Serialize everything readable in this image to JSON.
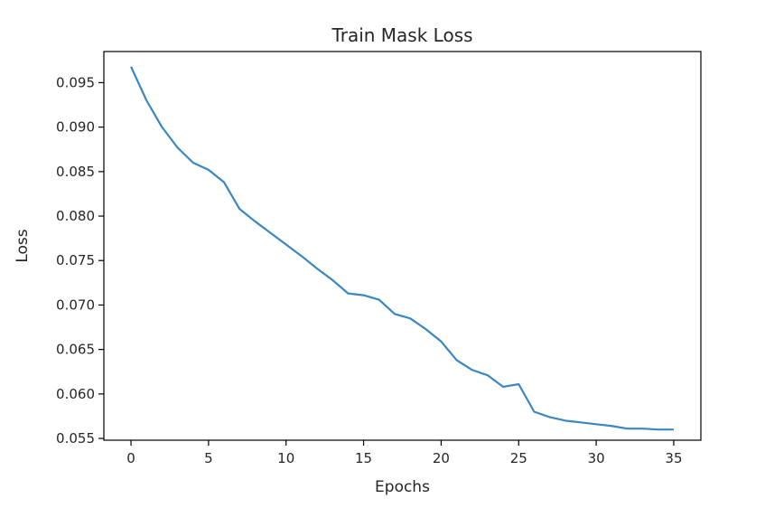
{
  "chart_data": {
    "type": "line",
    "title": "Train Mask Loss",
    "xlabel": "Epochs",
    "ylabel": "Loss",
    "xlim": [
      -1.75,
      36.75
    ],
    "ylim": [
      0.0548,
      0.0985
    ],
    "xticks": [
      0,
      5,
      10,
      15,
      20,
      25,
      30,
      35
    ],
    "xtick_labels": [
      "0",
      "5",
      "10",
      "15",
      "20",
      "25",
      "30",
      "35"
    ],
    "yticks": [
      0.055,
      0.06,
      0.065,
      0.07,
      0.075,
      0.08,
      0.085,
      0.09,
      0.095
    ],
    "ytick_labels": [
      "0.055",
      "0.060",
      "0.065",
      "0.070",
      "0.075",
      "0.080",
      "0.085",
      "0.090",
      "0.095"
    ],
    "grid": false,
    "series": [
      {
        "color": "#3a87c2",
        "x": [
          0,
          1,
          2,
          3,
          4,
          5,
          6,
          7,
          8,
          9,
          10,
          11,
          12,
          13,
          14,
          15,
          16,
          17,
          18,
          19,
          20,
          21,
          22,
          23,
          24,
          25,
          26,
          27,
          28,
          29,
          30,
          31,
          32,
          33,
          34,
          35
        ],
        "values": [
          0.0968,
          0.093,
          0.09,
          0.0877,
          0.086,
          0.0852,
          0.0838,
          0.0808,
          0.0794,
          0.0781,
          0.0768,
          0.0755,
          0.0741,
          0.0728,
          0.0713,
          0.0711,
          0.0706,
          0.069,
          0.0685,
          0.0673,
          0.0659,
          0.0638,
          0.0627,
          0.0621,
          0.0608,
          0.0611,
          0.058,
          0.0574,
          0.057,
          0.0568,
          0.0566,
          0.0564,
          0.0561,
          0.0561,
          0.056,
          0.056
        ]
      }
    ]
  }
}
